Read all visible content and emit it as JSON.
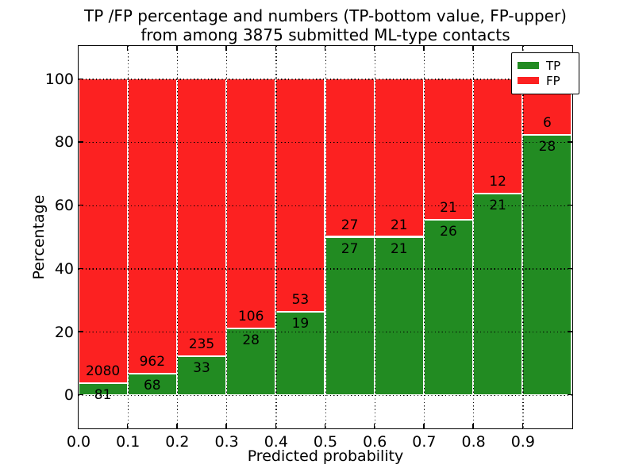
{
  "title": {
    "line1": "TP /FP percentage and numbers (TP-bottom value, FP-upper)",
    "line2": "from among 3875 submitted ML-type contacts"
  },
  "axes": {
    "xlabel": "Predicted probability",
    "ylabel": "Percentage",
    "x_tick_values": [
      0.0,
      0.1,
      0.2,
      0.3,
      0.4,
      0.5,
      0.6,
      0.7,
      0.8,
      0.9
    ],
    "x_tick_labels": [
      "0.0",
      "0.1",
      "0.2",
      "0.3",
      "0.4",
      "0.5",
      "0.6",
      "0.7",
      "0.8",
      "0.9"
    ],
    "y_tick_values": [
      0,
      20,
      40,
      60,
      80,
      100
    ],
    "y_tick_labels": [
      "0",
      "20",
      "40",
      "60",
      "80",
      "100"
    ],
    "xlim": [
      0,
      1
    ],
    "ylim": [
      -10.5,
      110.5
    ],
    "grid": "dotted black, on top of bars"
  },
  "legend": {
    "position": "upper right",
    "entries": [
      {
        "label": "TP",
        "color": "#228b22"
      },
      {
        "label": "FP",
        "color": "#fc2121"
      }
    ]
  },
  "colors": {
    "tp_bar": "#228b22",
    "fp_bar": "#fc2121",
    "bar_edge": "#ffffff",
    "text": "#000000",
    "background": "#ffffff"
  },
  "chart_data": {
    "type": "bar",
    "stacked": true,
    "normalized_to_100_percent": true,
    "bin_width": 0.1,
    "bin_starts": [
      0.0,
      0.1,
      0.2,
      0.3,
      0.4,
      0.5,
      0.6,
      0.7,
      0.8,
      0.9
    ],
    "categories": [
      "0.0-0.1",
      "0.1-0.2",
      "0.2-0.3",
      "0.3-0.4",
      "0.4-0.5",
      "0.5-0.6",
      "0.6-0.7",
      "0.7-0.8",
      "0.8-0.9",
      "0.9-1.0"
    ],
    "series": [
      {
        "name": "TP",
        "counts": [
          81,
          68,
          33,
          28,
          19,
          27,
          21,
          26,
          21,
          28
        ]
      },
      {
        "name": "FP",
        "counts": [
          2080,
          962,
          235,
          106,
          53,
          27,
          21,
          21,
          12,
          6
        ]
      }
    ],
    "tp_percent_heights": [
      3.7,
      6.6,
      12.3,
      20.9,
      26.4,
      50.0,
      50.0,
      55.3,
      63.6,
      82.4
    ],
    "total_contacts": 3875,
    "title": "TP /FP percentage and numbers (TP-bottom value, FP-upper) from among 3875 submitted ML-type contacts",
    "xlabel": "Predicted probability",
    "ylabel": "Percentage"
  }
}
